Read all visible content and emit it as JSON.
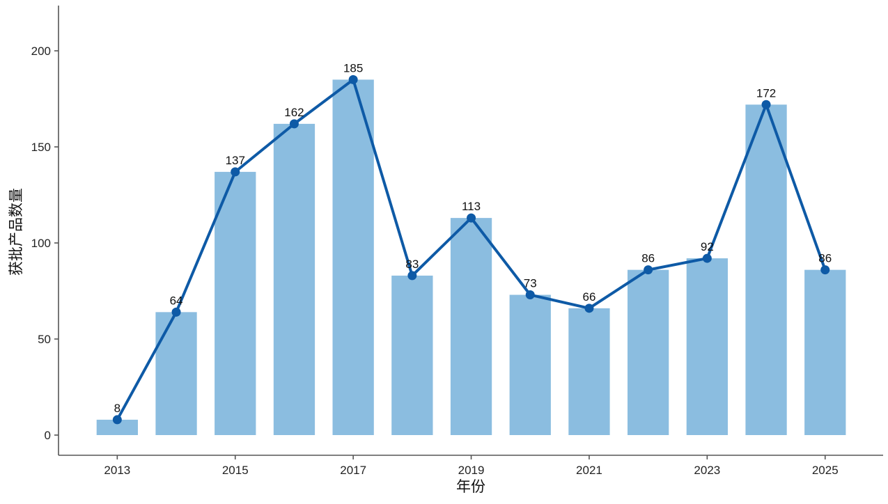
{
  "chart_data": {
    "type": "bar",
    "title": "",
    "xlabel": "年份",
    "ylabel": "获批产品数量",
    "categories": [
      "2013",
      "2014",
      "2015",
      "2016",
      "2017",
      "2018",
      "2019",
      "2020",
      "2021",
      "2022",
      "2023",
      "2024",
      "2025"
    ],
    "x_tick_labels": [
      "2013",
      "2015",
      "2017",
      "2019",
      "2021",
      "2023",
      "2025"
    ],
    "y_ticks": [
      0,
      50,
      100,
      150,
      200
    ],
    "ylim": [
      -10,
      223
    ],
    "series": [
      {
        "type": "bar",
        "values": [
          8,
          64,
          137,
          162,
          185,
          83,
          113,
          73,
          66,
          86,
          92,
          172,
          86
        ]
      },
      {
        "type": "line",
        "marker": "circle",
        "values": [
          8,
          64,
          137,
          162,
          185,
          83,
          113,
          73,
          66,
          86,
          92,
          172,
          86
        ]
      }
    ],
    "data_labels": [
      "8",
      "64",
      "137",
      "162",
      "185",
      "83",
      "113",
      "73",
      "66",
      "86",
      "92",
      "172",
      "86"
    ],
    "grid": false,
    "legend": "none",
    "colors": {
      "bar": "#8bbde0",
      "line": "#0e5aa6",
      "axis": "#555555"
    }
  }
}
